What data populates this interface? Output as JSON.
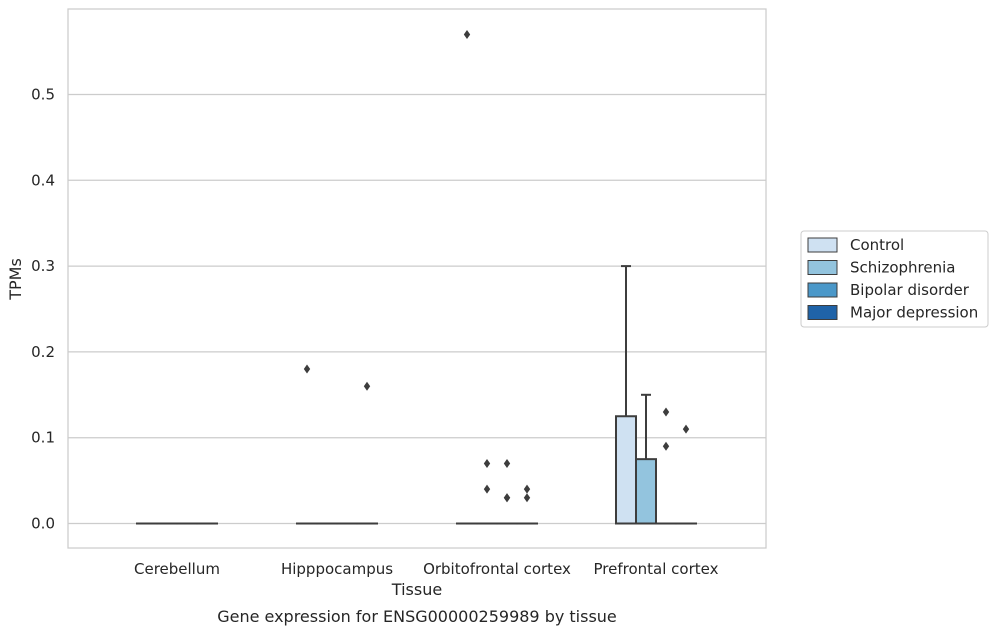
{
  "chart_data": {
    "type": "box",
    "xlabel": "Tissue",
    "ylabel": "TPMs",
    "caption": "Gene expression for ENSG00000259989 by tissue",
    "categories": [
      "Cerebellum",
      "Hipppocampus",
      "Orbitofrontal cortex",
      "Prefrontal cortex"
    ],
    "y_ticks": [
      "0.0",
      "0.1",
      "0.2",
      "0.3",
      "0.4",
      "0.5"
    ],
    "ylim": [
      -0.028,
      0.6
    ],
    "grid": true,
    "legend_position": "right",
    "series": [
      {
        "name": "Control",
        "color": "#cfe1f2",
        "boxes": [
          {
            "category": "Cerebellum",
            "q1": 0,
            "median": 0,
            "q3": 0,
            "whisker_low": 0,
            "whisker_high": 0,
            "outliers": []
          },
          {
            "category": "Hipppocampus",
            "q1": 0,
            "median": 0,
            "q3": 0,
            "whisker_low": 0,
            "whisker_high": 0,
            "outliers": [
              0.18
            ]
          },
          {
            "category": "Orbitofrontal cortex",
            "q1": 0,
            "median": 0,
            "q3": 0,
            "whisker_low": 0,
            "whisker_high": 0,
            "outliers": [
              0.57
            ]
          },
          {
            "category": "Prefrontal cortex",
            "q1": 0,
            "median": 0,
            "q3": 0.125,
            "whisker_low": 0,
            "whisker_high": 0.3,
            "outliers": []
          }
        ]
      },
      {
        "name": "Schizophrenia",
        "color": "#93c4de",
        "boxes": [
          {
            "category": "Cerebellum",
            "q1": 0,
            "median": 0,
            "q3": 0,
            "whisker_low": 0,
            "whisker_high": 0,
            "outliers": []
          },
          {
            "category": "Hipppocampus",
            "q1": 0,
            "median": 0,
            "q3": 0,
            "whisker_low": 0,
            "whisker_high": 0,
            "outliers": []
          },
          {
            "category": "Orbitofrontal cortex",
            "q1": 0,
            "median": 0,
            "q3": 0,
            "whisker_low": 0,
            "whisker_high": 0,
            "outliers": [
              0.04,
              0.07
            ]
          },
          {
            "category": "Prefrontal cortex",
            "q1": 0,
            "median": 0,
            "q3": 0.075,
            "whisker_low": 0,
            "whisker_high": 0.15,
            "outliers": []
          }
        ]
      },
      {
        "name": "Bipolar disorder",
        "color": "#4b98c9",
        "boxes": [
          {
            "category": "Cerebellum",
            "q1": 0,
            "median": 0,
            "q3": 0,
            "whisker_low": 0,
            "whisker_high": 0,
            "outliers": []
          },
          {
            "category": "Hipppocampus",
            "q1": 0,
            "median": 0,
            "q3": 0,
            "whisker_low": 0,
            "whisker_high": 0,
            "outliers": []
          },
          {
            "category": "Orbitofrontal cortex",
            "q1": 0,
            "median": 0,
            "q3": 0,
            "whisker_low": 0,
            "whisker_high": 0,
            "outliers": [
              0.03,
              0.03,
              0.07
            ]
          },
          {
            "category": "Prefrontal cortex",
            "q1": 0,
            "median": 0,
            "q3": 0,
            "whisker_low": 0,
            "whisker_high": 0,
            "outliers": [
              0.09,
              0.13
            ]
          }
        ]
      },
      {
        "name": "Major depression",
        "color": "#1f63a8",
        "boxes": [
          {
            "category": "Cerebellum",
            "q1": 0,
            "median": 0,
            "q3": 0,
            "whisker_low": 0,
            "whisker_high": 0,
            "outliers": []
          },
          {
            "category": "Hipppocampus",
            "q1": 0,
            "median": 0,
            "q3": 0,
            "whisker_low": 0,
            "whisker_high": 0,
            "outliers": [
              0.16
            ]
          },
          {
            "category": "Orbitofrontal cortex",
            "q1": 0,
            "median": 0,
            "q3": 0,
            "whisker_low": 0,
            "whisker_high": 0,
            "outliers": [
              0.03,
              0.04
            ]
          },
          {
            "category": "Prefrontal cortex",
            "q1": 0,
            "median": 0,
            "q3": 0,
            "whisker_low": 0,
            "whisker_high": 0,
            "outliers": [
              0.11
            ]
          }
        ]
      }
    ]
  }
}
